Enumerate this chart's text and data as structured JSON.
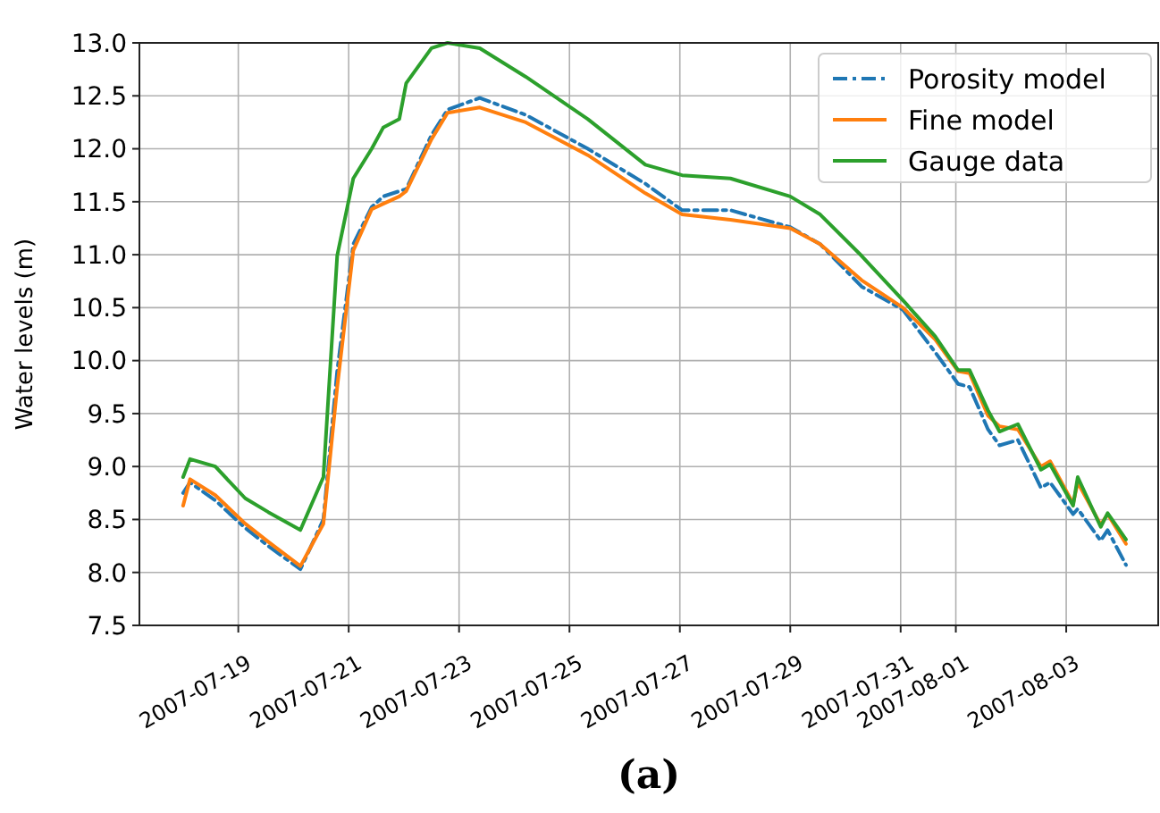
{
  "chart_data": {
    "type": "line",
    "ylabel": "Water levels (m)",
    "annotations": [
      "(a)"
    ],
    "x": [
      "2007-07-18T00:00",
      "2007-07-18T03:00",
      "2007-07-18T14:00",
      "2007-07-19T03:00",
      "2007-07-19T13:00",
      "2007-07-20T03:00",
      "2007-07-20T13:00",
      "2007-07-20T19:00",
      "2007-07-21T02:00",
      "2007-07-21T10:00",
      "2007-07-21T15:00",
      "2007-07-21T22:00",
      "2007-07-22T01:00",
      "2007-07-22T12:00",
      "2007-07-22T19:00",
      "2007-07-23T09:00",
      "2007-07-24T05:00",
      "2007-07-25T08:00",
      "2007-07-26T09:00",
      "2007-07-27T01:00",
      "2007-07-27T22:00",
      "2007-07-29T00:00",
      "2007-07-29T13:00",
      "2007-07-30T07:00",
      "2007-07-31T01:00",
      "2007-07-31T15:00",
      "2007-08-01T01:00",
      "2007-08-01T06:00",
      "2007-08-01T14:00",
      "2007-08-01T19:00",
      "2007-08-02T03:00",
      "2007-08-02T13:00",
      "2007-08-02T17:00",
      "2007-08-03T03:00",
      "2007-08-03T05:00",
      "2007-08-03T15:00",
      "2007-08-03T18:00",
      "2007-08-04T02:00"
    ],
    "series": [
      {
        "name": "Porosity model",
        "color": "#1f77b4",
        "line_style": "dashed",
        "values": [
          8.75,
          8.85,
          8.68,
          8.42,
          8.25,
          8.03,
          8.5,
          9.9,
          11.1,
          11.45,
          11.55,
          11.6,
          11.62,
          12.13,
          12.37,
          12.48,
          12.32,
          12.0,
          11.67,
          11.42,
          11.42,
          11.26,
          11.1,
          10.7,
          10.48,
          10.08,
          9.78,
          9.75,
          9.35,
          9.2,
          9.25,
          8.8,
          8.85,
          8.55,
          8.6,
          8.3,
          8.4,
          8.07
        ]
      },
      {
        "name": "Fine model",
        "color": "#ff7f0e",
        "line_style": "solid",
        "values": [
          8.63,
          8.88,
          8.73,
          8.46,
          8.29,
          8.06,
          8.46,
          9.75,
          11.04,
          11.43,
          11.48,
          11.55,
          11.6,
          12.09,
          12.34,
          12.39,
          12.25,
          11.94,
          11.58,
          11.38,
          11.33,
          11.25,
          11.1,
          10.76,
          10.5,
          10.2,
          9.9,
          9.88,
          9.48,
          9.38,
          9.35,
          9.0,
          9.05,
          8.65,
          8.85,
          8.45,
          8.55,
          8.27
        ]
      },
      {
        "name": "Gauge data",
        "color": "#2ca02c",
        "line_style": "solid",
        "values": [
          8.9,
          9.07,
          9.0,
          8.7,
          8.57,
          8.4,
          8.9,
          10.99,
          11.72,
          12.0,
          12.2,
          12.28,
          12.62,
          12.95,
          13.0,
          12.95,
          12.68,
          12.28,
          11.85,
          11.75,
          11.72,
          11.55,
          11.38,
          10.99,
          10.57,
          10.23,
          9.91,
          9.91,
          9.53,
          9.33,
          9.4,
          8.97,
          9.02,
          8.63,
          8.9,
          8.43,
          8.56,
          8.31
        ]
      }
    ],
    "xlim": [
      "2007-07-17T05:00",
      "2007-08-04T16:00"
    ],
    "xticks": [
      "2007-07-19",
      "2007-07-21",
      "2007-07-23",
      "2007-07-25",
      "2007-07-27",
      "2007-07-29",
      "2007-07-31",
      "2007-08-01",
      "2007-08-03"
    ],
    "ylim": [
      7.5,
      13.0
    ],
    "yticks": [
      7.5,
      {
        "value": 8,
        "label": "8.0"
      },
      8.5,
      {
        "value": 9,
        "label": "9.0"
      },
      9.5,
      {
        "value": 10,
        "label": "10.0"
      },
      10.5,
      {
        "value": 11,
        "label": "11.0"
      },
      11.5,
      {
        "value": 12,
        "label": "12.0"
      },
      12.5,
      {
        "value": 13,
        "label": "13.0"
      }
    ],
    "grid": true,
    "legend": "top right"
  }
}
